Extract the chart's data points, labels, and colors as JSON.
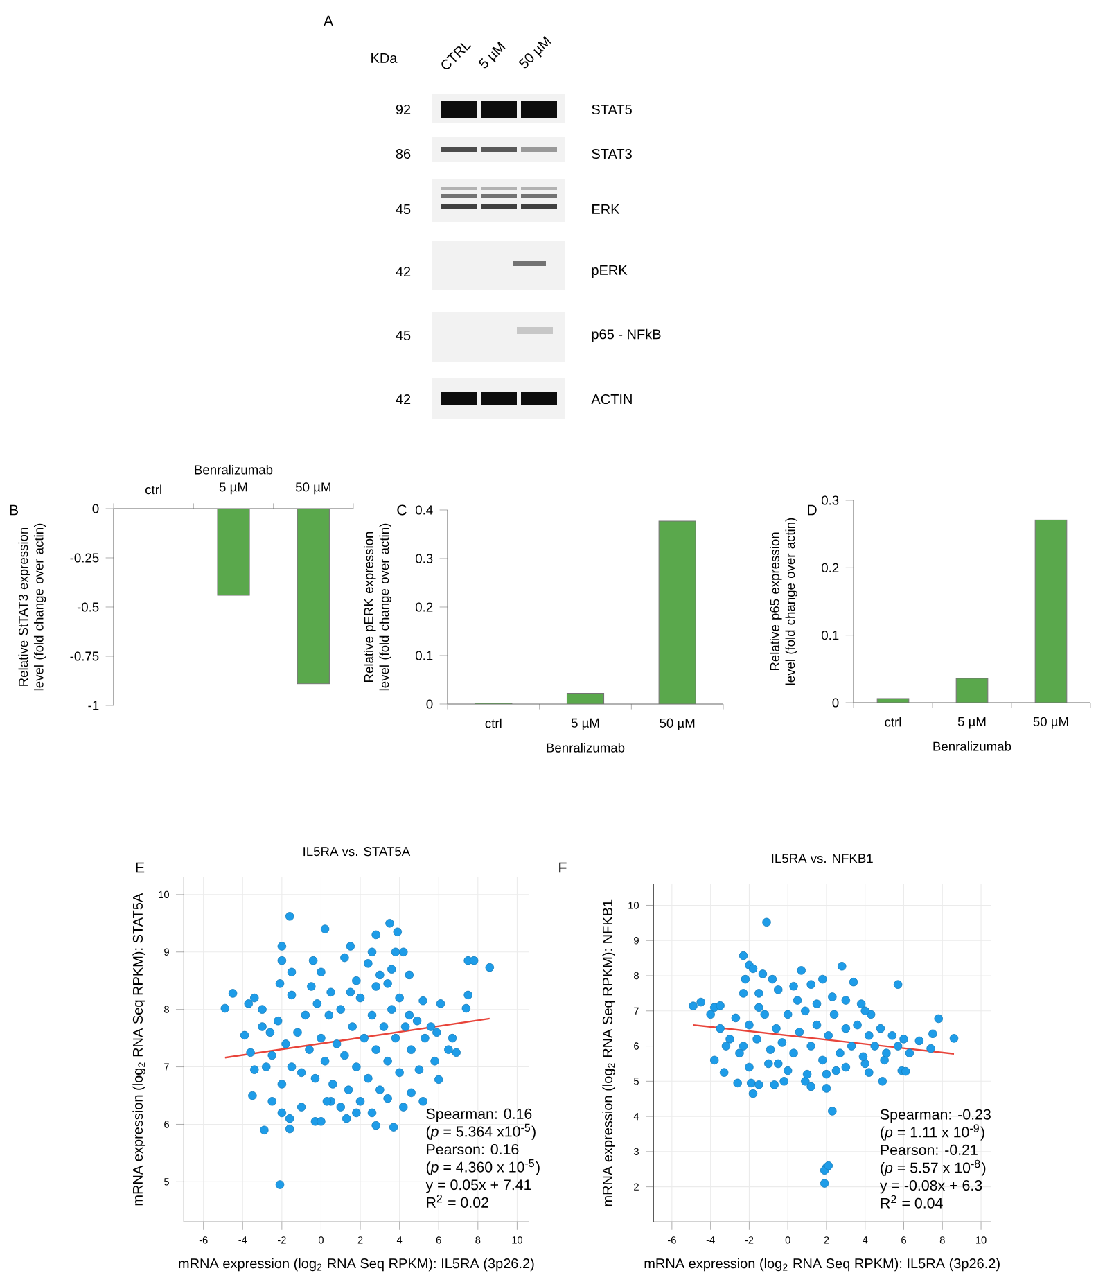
{
  "chart_data": [
    {
      "type": "other",
      "annotations": [
        "A",
        "KDa",
        "CTRL",
        "5 µM",
        "50 µM",
        "92",
        "86",
        "45",
        "42",
        "45",
        "42",
        "STAT5",
        "STAT3",
        "ERK",
        "pERK",
        "p65 - NFkB",
        "ACTIN"
      ]
    },
    {
      "type": "bar",
      "annotations": [
        "B"
      ],
      "xlabel": "Benralizumab",
      "ylabel": "Relative StTAT3 expression level (fold change over actin)",
      "categories": [
        "ctrl",
        "5 µM",
        "50 µM"
      ],
      "values": [
        null,
        -0.44,
        -0.89
      ],
      "color": "#5aa84c",
      "ylim": [
        -1,
        0
      ],
      "yticks": [
        -1,
        -0.75,
        -0.5,
        -0.25,
        0
      ]
    },
    {
      "type": "bar",
      "annotations": [
        "C"
      ],
      "xlabel": "Benralizumab",
      "ylabel": "Relative pERK expression level (fold change over actin)",
      "categories": [
        "ctrl",
        "5 µM",
        "50 µM"
      ],
      "values": [
        0.002,
        0.022,
        0.377
      ],
      "color": "#5aa84c",
      "ylim": [
        0,
        0.4
      ],
      "yticks": [
        0,
        0.1,
        0.2,
        0.3,
        0.4
      ]
    },
    {
      "type": "bar",
      "annotations": [
        "D"
      ],
      "xlabel": "Benralizumab",
      "ylabel": "Relative p65 expression level (fold change over actin)",
      "categories": [
        "ctrl",
        "5 µM",
        "50 µM"
      ],
      "values": [
        0.006,
        0.036,
        0.271
      ],
      "color": "#5aa84c",
      "ylim": [
        0,
        0.3
      ],
      "yticks": [
        0,
        0.1,
        0.2,
        0.3
      ]
    },
    {
      "type": "scatter",
      "title": "IL5RA vs. STAT5A",
      "annotations": [
        "E",
        "Spearman: 0.16",
        "(*p* = 5.364 x10$^{-5}$)",
        "Pearson: 0.16",
        "(*p* = 4.360 x 10$^{-5}$)",
        "y = 0.05x + 7.41",
        "R$^{2}$ = 0.02"
      ],
      "xlabel": "mRNA expression (log$_{2}$ RNA Seq RPKM): IL5RA (3p26.2)",
      "ylabel": "mRNA expression (log$_{2}$ RNA Seq RPKM): STAT5A",
      "xlim": [
        -7,
        10.6
      ],
      "xticks": [
        -6,
        -4,
        -2,
        0,
        2,
        4,
        6,
        8,
        10
      ],
      "ylim": [
        4.3,
        10.3
      ],
      "yticks": [
        5,
        6,
        7,
        8,
        9,
        10
      ],
      "grid": true,
      "series": [
        {
          "marker": "circle",
          "color": "#1e9ce8",
          "x": [
            -1.6,
            0.2,
            3.5,
            3.9,
            2.8,
            -2.0,
            1.5,
            4.2,
            3.8,
            2.6,
            -2.0,
            -0.4,
            1.2,
            2.4,
            4.5,
            3.6,
            -1.5,
            0.0,
            7.5,
            7.8,
            8.6,
            -4.5,
            -4.9,
            -3.7,
            -3.4,
            -3.0,
            -2.1,
            -1.5,
            -0.5,
            0.5,
            1.8,
            2.8,
            3.4,
            4.0,
            5.2,
            6.1,
            7.5,
            7.4,
            -3.9,
            -3.6,
            -3.4,
            -3.5,
            -2.9,
            -2.1,
            -1.6,
            -1.6,
            -0.3,
            0.0,
            1.3,
            1.8,
            2.6,
            2.8,
            3.7,
            3.4,
            4.2,
            5.2,
            6.0,
            5.8,
            6.5,
            6.9,
            6.7,
            5.0,
            4.6,
            -2.5,
            -2.0,
            -1.0,
            0.5,
            -2.8,
            -2.6,
            -2.2,
            -2.5,
            -1.8,
            -1.5,
            -1.2,
            -1.0,
            -0.8,
            -0.6,
            -0.3,
            0.0,
            0.2,
            0.4,
            0.6,
            0.8,
            1.0,
            1.2,
            1.4,
            1.6,
            1.8,
            2.0,
            2.2,
            2.4,
            2.6,
            2.8,
            3.0,
            3.2,
            3.4,
            3.6,
            3.8,
            4.0,
            4.3,
            4.6,
            4.9,
            5.3,
            5.6,
            5.9,
            -3.0,
            -2.0,
            1.0,
            2.0,
            3.0,
            -0.2,
            1.5,
            0.3,
            4.5
          ],
          "values": [
            9.62,
            9.4,
            9.5,
            9.35,
            9.3,
            9.1,
            9.1,
            9.0,
            9.0,
            9.0,
            8.85,
            8.85,
            8.9,
            8.8,
            8.6,
            8.7,
            8.65,
            8.65,
            8.85,
            8.85,
            8.73,
            8.28,
            8.02,
            8.1,
            8.2,
            8.0,
            8.45,
            8.25,
            8.4,
            8.3,
            8.5,
            8.4,
            8.45,
            8.2,
            8.15,
            8.1,
            8.25,
            8.02,
            7.55,
            7.25,
            6.95,
            6.5,
            5.9,
            4.95,
            5.92,
            6.1,
            6.05,
            6.05,
            6.1,
            6.2,
            6.2,
            5.98,
            5.95,
            6.45,
            6.3,
            6.4,
            6.78,
            7.1,
            7.3,
            7.25,
            7.5,
            6.95,
            6.55,
            6.4,
            6.2,
            6.3,
            6.4,
            7.0,
            7.6,
            7.8,
            7.2,
            7.4,
            7.0,
            7.6,
            6.9,
            7.9,
            7.3,
            6.8,
            7.5,
            7.1,
            7.9,
            6.7,
            7.4,
            8.0,
            7.2,
            6.6,
            7.7,
            7.0,
            8.2,
            7.5,
            6.8,
            7.9,
            7.3,
            6.6,
            7.7,
            7.1,
            8.0,
            7.5,
            6.9,
            7.7,
            7.3,
            7.8,
            7.5,
            7.7,
            7.6,
            7.7,
            6.7,
            6.3,
            6.4,
            8.6,
            8.1,
            8.3,
            6.4,
            7.9
          ]
        },
        {
          "type": "line",
          "color": "#e8443a",
          "x": [
            -4.9,
            8.6
          ],
          "values": [
            7.16,
            7.84
          ]
        }
      ]
    },
    {
      "type": "scatter",
      "title": "IL5RA vs. NFKB1",
      "annotations": [
        "F",
        "Spearman: -0.23",
        "(*p* = 1.11 x 10$^{-9}$)",
        "Pearson: -0.21",
        "(*p* = 5.57 x 10$^{-8}$)",
        "y = -0.08x + 6.3",
        "R$^{2}$ = 0.04"
      ],
      "xlabel": "mRNA expression (log$_{2}$ RNA Seq RPKM): IL5RA (3p26.2)",
      "ylabel": "mRNA expression (log$_{2}$ RNA Seq RPKM): NFKB1",
      "xlim": [
        -6.95,
        10.5
      ],
      "xticks": [
        -6,
        -4,
        -2,
        0,
        2,
        4,
        6,
        8,
        10
      ],
      "ylim": [
        1,
        10.6
      ],
      "yticks": [
        2,
        3,
        4,
        5,
        6,
        7,
        8,
        9,
        10
      ],
      "grid": true,
      "series": [
        {
          "marker": "circle",
          "color": "#1e9ce8",
          "x": [
            -1.1,
            -2.3,
            -2.0,
            -1.8,
            -1.3,
            -0.8,
            0.7,
            2.8,
            3.4,
            5.7,
            1.8,
            1.2,
            0.3,
            -2.2,
            -4.9,
            -4.5,
            -3.8,
            -3.5,
            -2.3,
            -1.5,
            -0.5,
            2.3,
            3.0,
            3.8,
            4.3,
            7.8,
            8.6,
            7.5,
            7.4,
            6.8,
            6.3,
            5.9,
            6.1,
            4.9,
            4.2,
            -3.8,
            -3.3,
            -2.6,
            -1.9,
            -1.8,
            -1.5,
            -0.7,
            -0.2,
            0.9,
            1.2,
            2.0,
            2.3,
            2.0,
            1.9,
            2.1,
            1.9,
            -2.0,
            -1.0,
            0.0,
            1.0,
            2.0,
            3.0,
            4.0,
            5.0,
            -3.5,
            -3.0,
            -2.7,
            -2.3,
            -2.0,
            -1.6,
            -1.2,
            -0.9,
            -0.6,
            -0.3,
            0.0,
            0.3,
            0.6,
            0.9,
            1.2,
            1.5,
            1.8,
            2.1,
            2.4,
            2.7,
            3.0,
            3.3,
            3.6,
            3.9,
            4.2,
            4.5,
            4.8,
            5.1,
            5.4,
            5.7,
            6.0,
            -1.5,
            0.5,
            1.5,
            -2.5,
            4.0,
            2.5,
            -0.5,
            -4.0,
            -3.2
          ],
          "values": [
            9.52,
            8.57,
            8.3,
            8.2,
            8.05,
            7.9,
            8.15,
            8.27,
            7.82,
            7.75,
            7.9,
            7.75,
            7.7,
            7.9,
            7.14,
            7.25,
            7.1,
            7.15,
            7.5,
            7.5,
            7.6,
            7.4,
            7.3,
            7.2,
            6.9,
            6.78,
            6.22,
            6.35,
            5.93,
            6.15,
            5.8,
            5.3,
            5.28,
            5.0,
            5.25,
            5.6,
            5.25,
            4.95,
            4.95,
            4.65,
            4.9,
            4.9,
            5.0,
            5.0,
            4.85,
            4.8,
            4.15,
            2.55,
            2.47,
            2.6,
            2.1,
            5.4,
            5.5,
            5.3,
            5.2,
            5.2,
            5.4,
            5.5,
            5.6,
            6.5,
            6.2,
            6.8,
            6.0,
            6.6,
            6.2,
            6.9,
            5.9,
            6.5,
            6.1,
            6.9,
            5.8,
            6.4,
            7.0,
            6.0,
            6.6,
            5.6,
            6.3,
            6.9,
            5.8,
            6.5,
            6.0,
            6.6,
            5.7,
            6.3,
            6.0,
            6.5,
            5.8,
            6.3,
            6.0,
            6.2,
            7.1,
            7.3,
            7.2,
            5.8,
            7.0,
            5.3,
            5.5,
            6.9,
            6.0
          ]
        },
        {
          "type": "line",
          "color": "#e8443a",
          "x": [
            -4.9,
            8.6
          ],
          "values": [
            6.6,
            5.78
          ]
        }
      ]
    }
  ]
}
